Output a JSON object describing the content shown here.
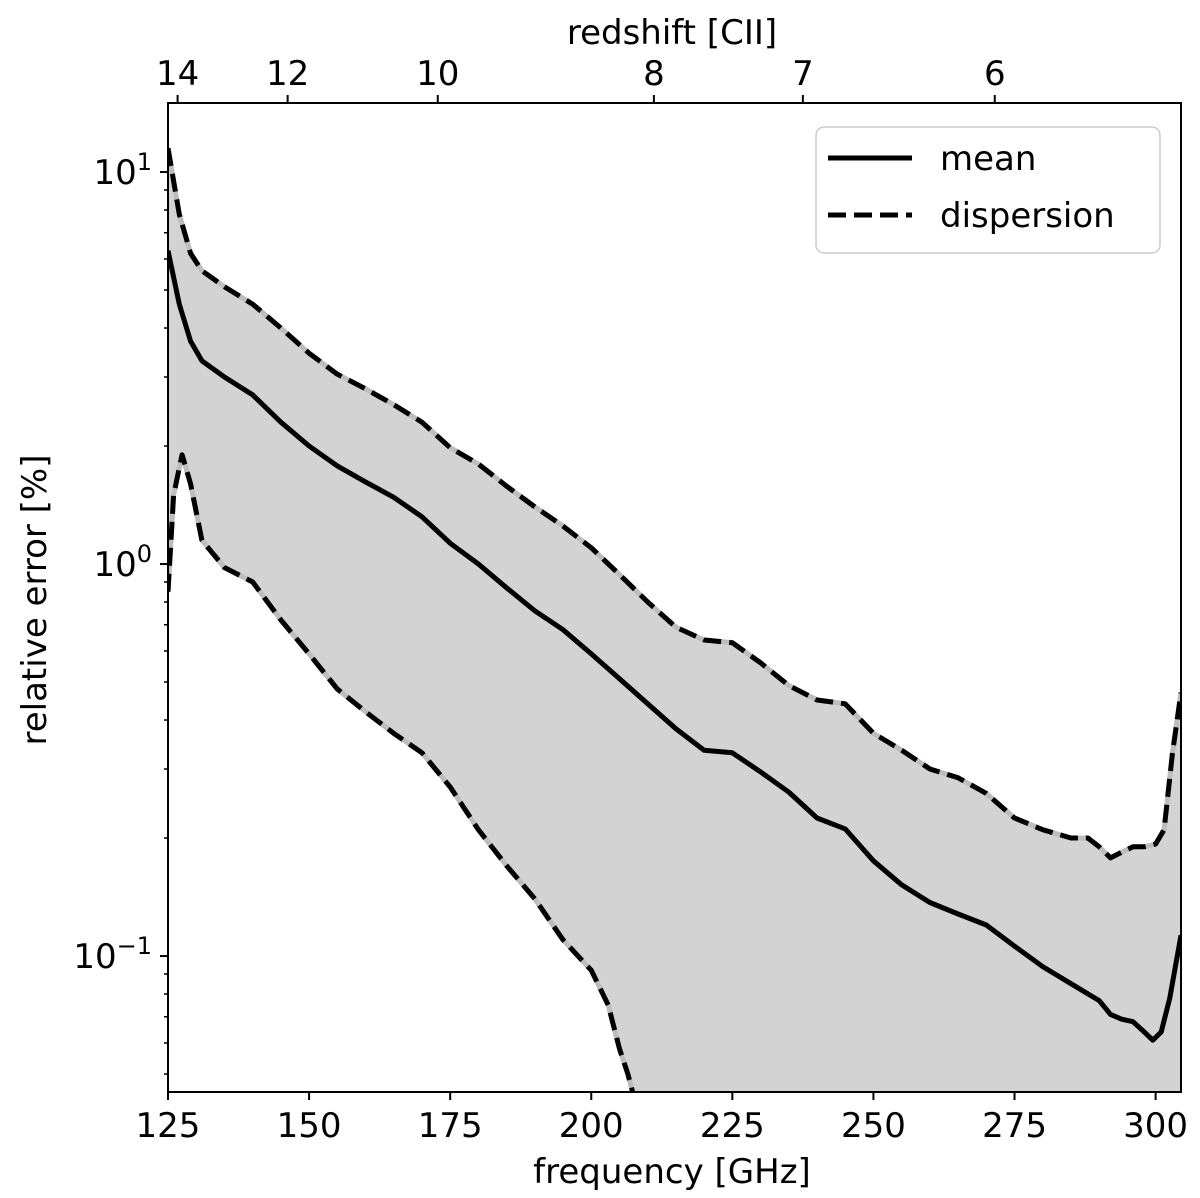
{
  "chart_data": {
    "type": "line",
    "xlabel": "frequency [GHz]",
    "ylabel": "relative error [%]",
    "top_xlabel": "redshift [CII]",
    "xlim": [
      125,
      304.5
    ],
    "ylim": [
      0.045,
      15
    ],
    "yscale": "log",
    "x_ticks": [
      125,
      150,
      175,
      200,
      225,
      250,
      275,
      300
    ],
    "x_tick_labels": [
      "125",
      "150",
      "175",
      "200",
      "225",
      "250",
      "275",
      "300"
    ],
    "y_ticks": [
      {
        "value": 10,
        "base": "10",
        "exp": "1"
      },
      {
        "value": 1,
        "base": "10",
        "exp": "0"
      },
      {
        "value": 0.1,
        "base": "10",
        "exp": "−1"
      }
    ],
    "top_ticks": [
      {
        "label": "14",
        "freq": 126.7
      },
      {
        "label": "12",
        "freq": 146.2
      },
      {
        "label": "10",
        "freq": 172.8
      },
      {
        "label": "8",
        "freq": 211.1
      },
      {
        "label": "7",
        "freq": 237.5
      },
      {
        "label": "6",
        "freq": 271.5
      }
    ],
    "grid": false,
    "legend": {
      "position": "top-right",
      "entries": [
        {
          "label": "mean",
          "style": "solid"
        },
        {
          "label": "dispersion",
          "style": "dashed"
        }
      ]
    },
    "band_color": "#d3d3d3",
    "series": [
      {
        "name": "mean",
        "style": "solid",
        "points": [
          [
            125,
            6.3
          ],
          [
            127,
            4.6
          ],
          [
            129,
            3.7
          ],
          [
            131,
            3.3
          ],
          [
            135,
            3.0
          ],
          [
            140,
            2.7
          ],
          [
            145,
            2.3
          ],
          [
            150,
            2.0
          ],
          [
            155,
            1.78
          ],
          [
            160,
            1.62
          ],
          [
            165,
            1.48
          ],
          [
            170,
            1.32
          ],
          [
            175,
            1.13
          ],
          [
            180,
            1.0
          ],
          [
            185,
            0.87
          ],
          [
            190,
            0.76
          ],
          [
            195,
            0.68
          ],
          [
            200,
            0.59
          ],
          [
            205,
            0.51
          ],
          [
            210,
            0.44
          ],
          [
            215,
            0.38
          ],
          [
            220,
            0.335
          ],
          [
            225,
            0.33
          ],
          [
            230,
            0.295
          ],
          [
            235,
            0.262
          ],
          [
            240,
            0.225
          ],
          [
            245,
            0.211
          ],
          [
            250,
            0.175
          ],
          [
            255,
            0.152
          ],
          [
            260,
            0.137
          ],
          [
            265,
            0.128
          ],
          [
            270,
            0.12
          ],
          [
            275,
            0.106
          ],
          [
            280,
            0.094
          ],
          [
            285,
            0.085
          ],
          [
            290,
            0.077
          ],
          [
            292,
            0.071
          ],
          [
            294,
            0.069
          ],
          [
            296,
            0.068
          ],
          [
            298,
            0.064
          ],
          [
            299.5,
            0.061
          ],
          [
            301,
            0.064
          ],
          [
            302.5,
            0.078
          ],
          [
            304.5,
            0.113
          ]
        ]
      },
      {
        "name": "dispersion upper",
        "style": "dashed",
        "points": [
          [
            125,
            11.5
          ],
          [
            127,
            7.8
          ],
          [
            129,
            6.2
          ],
          [
            131,
            5.6
          ],
          [
            135,
            5.1
          ],
          [
            140,
            4.6
          ],
          [
            145,
            4.0
          ],
          [
            150,
            3.45
          ],
          [
            155,
            3.05
          ],
          [
            160,
            2.8
          ],
          [
            165,
            2.55
          ],
          [
            170,
            2.3
          ],
          [
            175,
            1.98
          ],
          [
            180,
            1.8
          ],
          [
            185,
            1.58
          ],
          [
            190,
            1.4
          ],
          [
            195,
            1.25
          ],
          [
            200,
            1.1
          ],
          [
            205,
            0.94
          ],
          [
            210,
            0.8
          ],
          [
            215,
            0.69
          ],
          [
            220,
            0.64
          ],
          [
            225,
            0.63
          ],
          [
            230,
            0.56
          ],
          [
            235,
            0.49
          ],
          [
            240,
            0.45
          ],
          [
            245,
            0.44
          ],
          [
            250,
            0.37
          ],
          [
            255,
            0.335
          ],
          [
            260,
            0.3
          ],
          [
            265,
            0.285
          ],
          [
            270,
            0.26
          ],
          [
            275,
            0.225
          ],
          [
            280,
            0.21
          ],
          [
            285,
            0.2
          ],
          [
            288,
            0.2
          ],
          [
            290,
            0.19
          ],
          [
            292,
            0.178
          ],
          [
            294,
            0.184
          ],
          [
            296,
            0.19
          ],
          [
            298,
            0.19
          ],
          [
            300,
            0.193
          ],
          [
            301.5,
            0.21
          ],
          [
            303,
            0.33
          ],
          [
            304.5,
            0.47
          ]
        ]
      },
      {
        "name": "dispersion lower",
        "style": "dashed",
        "points": [
          [
            125,
            0.85
          ],
          [
            126,
            1.5
          ],
          [
            127.5,
            1.9
          ],
          [
            129,
            1.6
          ],
          [
            131,
            1.15
          ],
          [
            135,
            0.98
          ],
          [
            140,
            0.9
          ],
          [
            145,
            0.72
          ],
          [
            150,
            0.59
          ],
          [
            155,
            0.48
          ],
          [
            160,
            0.42
          ],
          [
            165,
            0.37
          ],
          [
            170,
            0.33
          ],
          [
            175,
            0.27
          ],
          [
            180,
            0.21
          ],
          [
            185,
            0.17
          ],
          [
            190,
            0.14
          ],
          [
            195,
            0.11
          ],
          [
            200,
            0.092
          ],
          [
            203,
            0.075
          ],
          [
            205,
            0.058
          ],
          [
            206.5,
            0.05
          ],
          [
            207.5,
            0.044
          ]
        ]
      }
    ]
  }
}
